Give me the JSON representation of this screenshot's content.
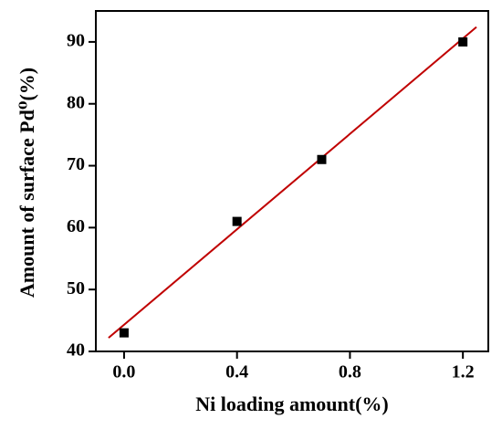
{
  "chart_data": {
    "type": "scatter",
    "x_label": "Ni loading amount(%)",
    "y_label": "Amount of surface Pd⁰(%)",
    "series": [
      {
        "x": [
          0.0,
          0.4,
          0.7,
          1.2
        ],
        "values": [
          43,
          61,
          71,
          90
        ],
        "color": "#000000"
      }
    ],
    "fit": {
      "x": [
        -0.055,
        1.248
      ],
      "values": [
        42.2,
        92.4
      ],
      "color": "#c00000"
    },
    "xlim": [
      -0.1,
      1.29
    ],
    "ylim": [
      40,
      95
    ],
    "xticks": [
      {
        "value": 0,
        "label": "0.0"
      },
      {
        "value": 0.4,
        "label": "0.4"
      },
      {
        "value": 0.8,
        "label": "0.8"
      },
      {
        "value": 1.2,
        "label": "1.2"
      }
    ],
    "yticks": [
      40,
      50,
      60,
      70,
      80,
      90
    ]
  }
}
